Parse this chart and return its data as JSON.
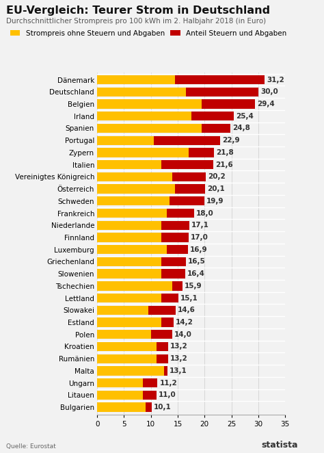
{
  "title": "EU-Vergleich: Teurer Strom in Deutschland",
  "subtitle": "Durchschnittlicher Strompreis pro 100 kWh im 2. Halbjahr 2018 (in Euro)",
  "legend_yellow": "Strompreis ohne Steuern und Abgaben",
  "legend_red": "Anteil Steuern und Abgaben",
  "source": "Quelle: Eurostat",
  "color_yellow": "#FFC000",
  "color_red": "#C00000",
  "color_bg": "#F2F2F2",
  "color_bar_bg": "#F2F2F2",
  "countries": [
    "Dänemark",
    "Deutschland",
    "Belgien",
    "Irland",
    "Spanien",
    "Portugal",
    "Zypern",
    "Italien",
    "Vereinigtes Königreich",
    "Österreich",
    "Schweden",
    "Frankreich",
    "Niederlande",
    "Finnland",
    "Luxemburg",
    "Griechenland",
    "Slowenien",
    "Tschechien",
    "Lettland",
    "Slowakei",
    "Estland",
    "Polen",
    "Kroatien",
    "Rumänien",
    "Malta",
    "Ungarn",
    "Litauen",
    "Bulgarien"
  ],
  "total": [
    31.2,
    30.0,
    29.4,
    25.4,
    24.8,
    22.9,
    21.8,
    21.6,
    20.2,
    20.1,
    19.9,
    18.0,
    17.1,
    17.0,
    16.9,
    16.5,
    16.4,
    15.9,
    15.1,
    14.6,
    14.2,
    14.0,
    13.2,
    13.2,
    13.1,
    11.2,
    11.0,
    10.1
  ],
  "yellow": [
    14.5,
    16.5,
    19.5,
    17.5,
    19.5,
    10.5,
    17.0,
    12.0,
    14.0,
    14.5,
    13.5,
    13.0,
    12.0,
    12.0,
    13.0,
    12.0,
    12.0,
    14.0,
    12.0,
    9.5,
    12.0,
    10.0,
    11.0,
    11.0,
    12.5,
    8.5,
    8.5,
    9.0
  ],
  "xlim": [
    0,
    35
  ],
  "xticks": [
    0,
    5,
    10,
    15,
    20,
    25,
    30,
    35
  ],
  "bar_height": 0.75,
  "title_fontsize": 11.5,
  "subtitle_fontsize": 7.5,
  "legend_fontsize": 7.5,
  "label_fontsize": 7.5,
  "value_fontsize": 7.5
}
